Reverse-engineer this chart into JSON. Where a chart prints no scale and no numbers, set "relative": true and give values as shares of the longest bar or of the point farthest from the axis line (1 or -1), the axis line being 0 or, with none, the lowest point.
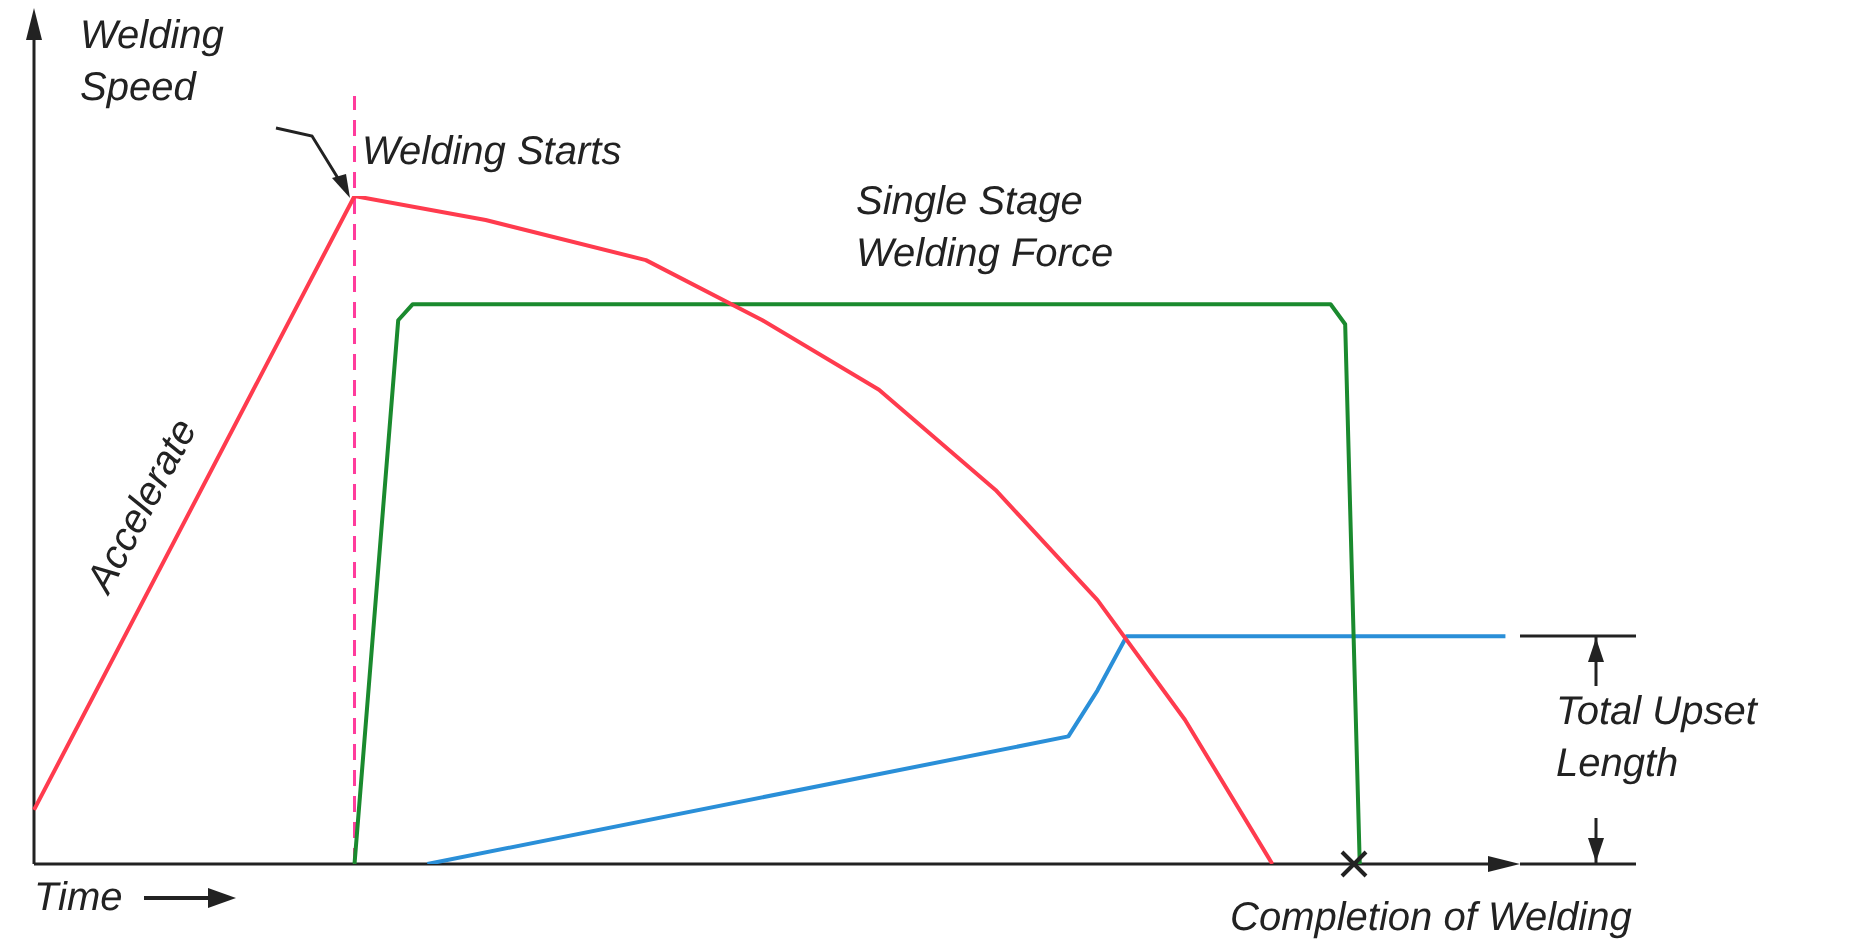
{
  "chart_data": {
    "type": "line",
    "relative": true,
    "xlabel": "Time",
    "legend": false,
    "grid": false,
    "marker": "none",
    "categories": [
      null,
      null,
      null,
      null,
      null,
      null,
      null,
      null,
      null,
      null,
      null,
      null,
      null,
      null,
      null,
      null,
      null,
      null,
      null,
      null,
      null,
      null,
      null,
      null,
      null,
      null,
      null,
      null,
      null,
      null,
      null,
      null,
      null,
      null,
      null,
      null,
      null,
      null,
      null,
      null,
      null,
      null,
      null,
      null,
      null,
      null,
      null,
      null,
      null,
      null,
      null,
      null,
      null,
      null,
      null,
      null,
      null,
      null,
      null,
      null,
      null,
      null,
      null,
      null,
      null,
      null,
      null,
      null,
      null,
      null,
      null,
      null,
      null,
      null,
      null,
      null,
      null,
      null,
      null,
      null,
      null,
      null,
      null,
      null,
      null,
      null,
      null,
      null,
      null,
      null,
      null,
      null,
      null,
      null,
      null,
      null,
      null,
      null,
      null,
      null,
      null,
      null,
      null
    ],
    "series": [
      {
        "color": "#ff3b4e",
        "values": [
          0.081,
          null,
          null,
          null,
          null,
          null,
          null,
          null,
          null,
          null,
          null,
          null,
          null,
          null,
          null,
          null,
          null,
          null,
          null,
          null,
          null,
          null,
          1,
          null,
          null,
          null,
          null,
          null,
          null,
          null,
          null,
          0.964,
          null,
          null,
          null,
          null,
          null,
          null,
          null,
          null,
          null,
          null,
          0.904,
          null,
          null,
          null,
          null,
          null,
          null,
          null,
          0.814,
          null,
          null,
          null,
          null,
          null,
          null,
          null,
          0.71,
          null,
          null,
          null,
          null,
          null,
          null,
          null,
          0.56,
          null,
          null,
          null,
          null,
          null,
          null,
          0.395,
          null,
          null,
          null,
          null,
          null,
          0.216,
          null,
          null,
          null,
          null,
          null,
          0,
          null,
          null,
          null,
          null,
          null,
          null,
          null,
          null,
          null,
          null,
          null,
          null,
          null,
          null,
          null,
          null,
          null
        ]
      },
      {
        "color": "#1a8a2e",
        "values": [
          null,
          null,
          null,
          null,
          null,
          null,
          null,
          null,
          null,
          null,
          null,
          null,
          null,
          null,
          null,
          null,
          null,
          null,
          null,
          null,
          null,
          null,
          0,
          null,
          null,
          0.814,
          0.838,
          null,
          null,
          null,
          null,
          null,
          null,
          null,
          null,
          null,
          null,
          null,
          null,
          null,
          null,
          null,
          null,
          null,
          null,
          null,
          null,
          null,
          null,
          null,
          null,
          null,
          null,
          null,
          null,
          null,
          null,
          null,
          null,
          null,
          null,
          null,
          null,
          null,
          null,
          null,
          null,
          null,
          null,
          null,
          null,
          null,
          null,
          null,
          null,
          null,
          null,
          null,
          null,
          null,
          null,
          null,
          null,
          null,
          null,
          null,
          null,
          null,
          null,
          0.838,
          0.808,
          0,
          null,
          null,
          null,
          null,
          null,
          null,
          null,
          null,
          null,
          null,
          null
        ]
      },
      {
        "color": "#2a8fd8",
        "values": [
          null,
          null,
          null,
          null,
          null,
          null,
          null,
          null,
          null,
          null,
          null,
          null,
          null,
          null,
          null,
          null,
          null,
          null,
          null,
          null,
          null,
          null,
          null,
          null,
          null,
          null,
          null,
          0,
          null,
          null,
          null,
          null,
          null,
          null,
          null,
          null,
          null,
          null,
          null,
          null,
          null,
          null,
          null,
          null,
          null,
          null,
          null,
          null,
          null,
          null,
          null,
          null,
          null,
          null,
          null,
          null,
          null,
          null,
          null,
          null,
          null,
          null,
          null,
          null,
          null,
          null,
          null,
          null,
          null,
          null,
          null,
          0.191,
          null,
          0.26,
          null,
          0.341,
          null,
          null,
          null,
          null,
          null,
          null,
          null,
          null,
          null,
          null,
          null,
          null,
          null,
          null,
          null,
          null,
          null,
          null,
          null,
          null,
          null,
          null,
          null,
          null,
          null,
          0.341,
          null
        ]
      }
    ],
    "annotations": [
      "Welding Speed",
      "Welding Starts",
      "Accelerate",
      "Single Stage Welding Force",
      "Total Upset Length",
      "Completion of Welding"
    ]
  }
}
